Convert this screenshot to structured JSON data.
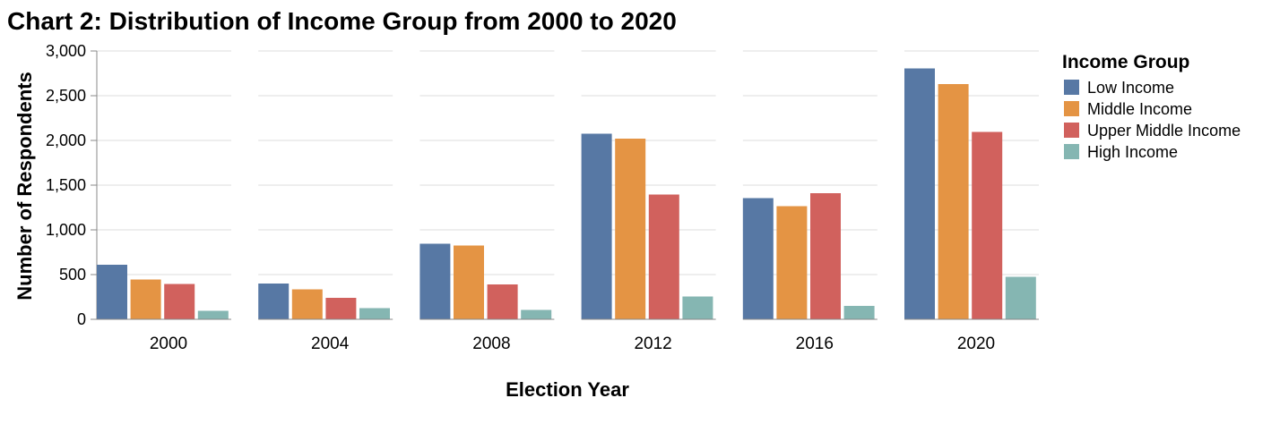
{
  "chart_data": {
    "type": "bar",
    "title": "Chart 2: Distribution of Income Group from 2000 to 2020",
    "xlabel": "Election Year",
    "ylabel": "Number of Respondents",
    "ylim": [
      0,
      3000
    ],
    "yticks": [
      0,
      500,
      1000,
      1500,
      2000,
      2500,
      3000
    ],
    "ytick_labels": [
      "0",
      "500",
      "1,000",
      "1,500",
      "2,000",
      "2,500",
      "3,000"
    ],
    "grid": true,
    "legend": {
      "title": "Income Group",
      "placement": "right"
    },
    "categories": [
      "2000",
      "2004",
      "2008",
      "2012",
      "2016",
      "2020"
    ],
    "series": [
      {
        "name": "Low Income",
        "color": "#5778a4",
        "values": [
          610,
          400,
          845,
          2075,
          1355,
          2805
        ]
      },
      {
        "name": "Middle Income",
        "color": "#e49444",
        "values": [
          445,
          335,
          825,
          2020,
          1265,
          2630
        ]
      },
      {
        "name": "Upper Middle Income",
        "color": "#d1615d",
        "values": [
          395,
          240,
          390,
          1395,
          1410,
          2095
        ]
      },
      {
        "name": "High Income",
        "color": "#85b6b2",
        "values": [
          95,
          125,
          105,
          255,
          150,
          475
        ]
      }
    ]
  }
}
